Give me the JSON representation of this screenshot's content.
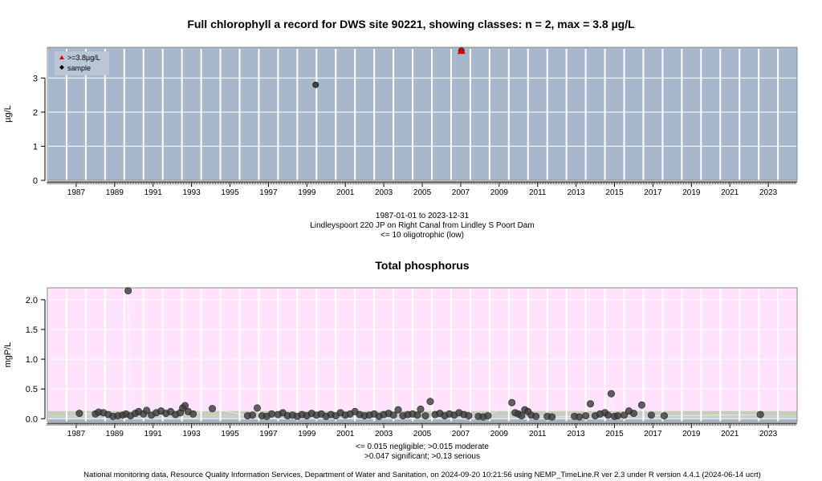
{
  "chart_data": [
    {
      "type": "scatter",
      "title": "Full chlorophyll a record for DWS site 90221, showing classes: n = 2, max = 3.8 µg/L",
      "ylabel": "µg/L",
      "xlabel": "",
      "xlim": [
        "1986-01-01",
        "2024-12-31"
      ],
      "ylim": [
        0,
        3.9
      ],
      "yticks": [
        "0",
        "1",
        "2",
        "3"
      ],
      "xticks": [
        "1987",
        "1989",
        "1991",
        "1993",
        "1995",
        "1997",
        "1999",
        "2001",
        "2003",
        "2005",
        "2007",
        "2009",
        "2011",
        "2013",
        "2015",
        "2017",
        "2019",
        "2021",
        "2023"
      ],
      "background": "#a7b8cc",
      "legend": {
        "position": "top-left",
        "items": [
          {
            "label": ">=3.8µg/L",
            "symbol": "triangle",
            "color": "#e00000"
          },
          {
            "label": "sample",
            "symbol": "diamond",
            "color": "#000000"
          }
        ]
      },
      "series": [
        {
          "name": "sample",
          "points": [
            {
              "x": "1999-12-15",
              "y": 2.8
            },
            {
              "x": "2007-07-15",
              "y": 3.8
            }
          ]
        },
        {
          "name": ">=3.8µg/L",
          "points": [
            {
              "x": "2007-07-15",
              "y": 3.8
            }
          ]
        }
      ],
      "caption": [
        "1987-01-01 to 2023-12-31",
        "Lindleyspoort 220 JP on Right Canal from Lindley S Poort Dam",
        "<= 10 oligotrophic (low)"
      ]
    },
    {
      "type": "scatter",
      "title": "Total phosphorus",
      "ylabel": "mgP/L",
      "xlabel": "",
      "xlim": [
        "1986-01-01",
        "2024-12-31"
      ],
      "ylim": [
        -0.05,
        2.2
      ],
      "yticks": [
        "0.0",
        "0.5",
        "1.0",
        "1.5",
        "2.0"
      ],
      "xticks": [
        "1987",
        "1989",
        "1991",
        "1993",
        "1995",
        "1997",
        "1999",
        "2001",
        "2003",
        "2005",
        "2007",
        "2009",
        "2011",
        "2013",
        "2015",
        "2017",
        "2019",
        "2021",
        "2023"
      ],
      "bands": [
        {
          "label": "negligible",
          "max": 0.015,
          "color": "#a7b8cc"
        },
        {
          "label": "moderate",
          "max": 0.047,
          "color": "#c8d0c4"
        },
        {
          "label": "significant",
          "max": 0.13,
          "color": "#c8ccbe"
        },
        {
          "label": "serious",
          "max": null,
          "color": "#ffe2fb"
        }
      ],
      "series": [
        {
          "name": "sample",
          "points": [
            {
              "x": "1987-09-01",
              "y": 0.09
            },
            {
              "x": "1988-07-01",
              "y": 0.08
            },
            {
              "x": "1988-09-01",
              "y": 0.11
            },
            {
              "x": "1988-12-01",
              "y": 0.1
            },
            {
              "x": "1989-03-01",
              "y": 0.07
            },
            {
              "x": "1989-06-01",
              "y": 0.04
            },
            {
              "x": "1989-09-01",
              "y": 0.05
            },
            {
              "x": "1989-12-01",
              "y": 0.06
            },
            {
              "x": "1990-02-01",
              "y": 0.08
            },
            {
              "x": "1990-03-15",
              "y": 2.15
            },
            {
              "x": "1990-05-01",
              "y": 0.05
            },
            {
              "x": "1990-08-01",
              "y": 0.09
            },
            {
              "x": "1990-10-01",
              "y": 0.12
            },
            {
              "x": "1991-01-01",
              "y": 0.08
            },
            {
              "x": "1991-03-01",
              "y": 0.14
            },
            {
              "x": "1991-06-01",
              "y": 0.06
            },
            {
              "x": "1991-09-01",
              "y": 0.1
            },
            {
              "x": "1991-12-01",
              "y": 0.13
            },
            {
              "x": "1992-03-01",
              "y": 0.09
            },
            {
              "x": "1992-06-01",
              "y": 0.12
            },
            {
              "x": "1992-09-01",
              "y": 0.07
            },
            {
              "x": "1992-12-01",
              "y": 0.1
            },
            {
              "x": "1993-01-15",
              "y": 0.18
            },
            {
              "x": "1993-03-01",
              "y": 0.22
            },
            {
              "x": "1993-05-01",
              "y": 0.12
            },
            {
              "x": "1993-08-01",
              "y": 0.08
            },
            {
              "x": "1994-08-01",
              "y": 0.17
            },
            {
              "x": "1996-06-01",
              "y": 0.05
            },
            {
              "x": "1996-09-01",
              "y": 0.06
            },
            {
              "x": "1996-12-01",
              "y": 0.18
            },
            {
              "x": "1997-03-01",
              "y": 0.05
            },
            {
              "x": "1997-06-01",
              "y": 0.04
            },
            {
              "x": "1997-09-01",
              "y": 0.08
            },
            {
              "x": "1998-01-01",
              "y": 0.07
            },
            {
              "x": "1998-04-01",
              "y": 0.1
            },
            {
              "x": "1998-07-01",
              "y": 0.05
            },
            {
              "x": "1998-10-01",
              "y": 0.06
            },
            {
              "x": "1999-01-01",
              "y": 0.04
            },
            {
              "x": "1999-04-01",
              "y": 0.07
            },
            {
              "x": "1999-07-01",
              "y": 0.05
            },
            {
              "x": "1999-10-01",
              "y": 0.09
            },
            {
              "x": "2000-01-01",
              "y": 0.06
            },
            {
              "x": "2000-04-01",
              "y": 0.08
            },
            {
              "x": "2000-07-01",
              "y": 0.04
            },
            {
              "x": "2000-10-01",
              "y": 0.07
            },
            {
              "x": "2001-01-01",
              "y": 0.05
            },
            {
              "x": "2001-04-01",
              "y": 0.1
            },
            {
              "x": "2001-07-01",
              "y": 0.06
            },
            {
              "x": "2001-10-01",
              "y": 0.08
            },
            {
              "x": "2002-01-01",
              "y": 0.12
            },
            {
              "x": "2002-04-01",
              "y": 0.07
            },
            {
              "x": "2002-07-01",
              "y": 0.05
            },
            {
              "x": "2002-10-01",
              "y": 0.06
            },
            {
              "x": "2003-01-01",
              "y": 0.08
            },
            {
              "x": "2003-04-01",
              "y": 0.04
            },
            {
              "x": "2003-07-01",
              "y": 0.07
            },
            {
              "x": "2003-10-01",
              "y": 0.09
            },
            {
              "x": "2004-01-01",
              "y": 0.06
            },
            {
              "x": "2004-04-01",
              "y": 0.15
            },
            {
              "x": "2004-07-01",
              "y": 0.05
            },
            {
              "x": "2004-10-01",
              "y": 0.07
            },
            {
              "x": "2005-01-01",
              "y": 0.08
            },
            {
              "x": "2005-04-01",
              "y": 0.06
            },
            {
              "x": "2005-06-01",
              "y": 0.16
            },
            {
              "x": "2005-09-01",
              "y": 0.05
            },
            {
              "x": "2005-12-01",
              "y": 0.29
            },
            {
              "x": "2006-03-01",
              "y": 0.07
            },
            {
              "x": "2006-06-01",
              "y": 0.09
            },
            {
              "x": "2006-09-01",
              "y": 0.05
            },
            {
              "x": "2006-12-01",
              "y": 0.08
            },
            {
              "x": "2007-03-01",
              "y": 0.06
            },
            {
              "x": "2007-06-01",
              "y": 0.1
            },
            {
              "x": "2007-09-01",
              "y": 0.07
            },
            {
              "x": "2007-12-01",
              "y": 0.05
            },
            {
              "x": "2008-06-01",
              "y": 0.04
            },
            {
              "x": "2008-09-01",
              "y": 0.03
            },
            {
              "x": "2008-12-01",
              "y": 0.05
            },
            {
              "x": "2010-03-01",
              "y": 0.27
            },
            {
              "x": "2010-05-01",
              "y": 0.1
            },
            {
              "x": "2010-07-01",
              "y": 0.08
            },
            {
              "x": "2010-09-01",
              "y": 0.05
            },
            {
              "x": "2010-11-01",
              "y": 0.15
            },
            {
              "x": "2011-01-01",
              "y": 0.12
            },
            {
              "x": "2011-03-01",
              "y": 0.06
            },
            {
              "x": "2011-06-01",
              "y": 0.04
            },
            {
              "x": "2012-01-01",
              "y": 0.04
            },
            {
              "x": "2012-04-01",
              "y": 0.03
            },
            {
              "x": "2013-06-01",
              "y": 0.04
            },
            {
              "x": "2013-09-01",
              "y": 0.03
            },
            {
              "x": "2014-01-01",
              "y": 0.05
            },
            {
              "x": "2014-04-01",
              "y": 0.25
            },
            {
              "x": "2014-07-01",
              "y": 0.05
            },
            {
              "x": "2014-10-01",
              "y": 0.08
            },
            {
              "x": "2015-01-01",
              "y": 0.1
            },
            {
              "x": "2015-03-01",
              "y": 0.06
            },
            {
              "x": "2015-05-01",
              "y": 0.42
            },
            {
              "x": "2015-07-01",
              "y": 0.04
            },
            {
              "x": "2015-09-01",
              "y": 0.05
            },
            {
              "x": "2016-01-01",
              "y": 0.06
            },
            {
              "x": "2016-04-01",
              "y": 0.13
            },
            {
              "x": "2016-07-01",
              "y": 0.09
            },
            {
              "x": "2016-12-01",
              "y": 0.23
            },
            {
              "x": "2017-06-01",
              "y": 0.06
            },
            {
              "x": "2018-02-01",
              "y": 0.05
            },
            {
              "x": "2023-02-01",
              "y": 0.07
            }
          ]
        }
      ],
      "caption": [
        "<= 0.015 negligible; >0.015 moderate",
        ">0.047 significant; >0.13 serious"
      ]
    }
  ],
  "footer": "National monitoring data, Resource Quality Information Services, Department of Water and Sanitation, on 2024-09-20 10:21:56 using NEMP_TimeLine.R ver 2.3 under R version 4.4.1 (2024-06-14 ucrt)"
}
